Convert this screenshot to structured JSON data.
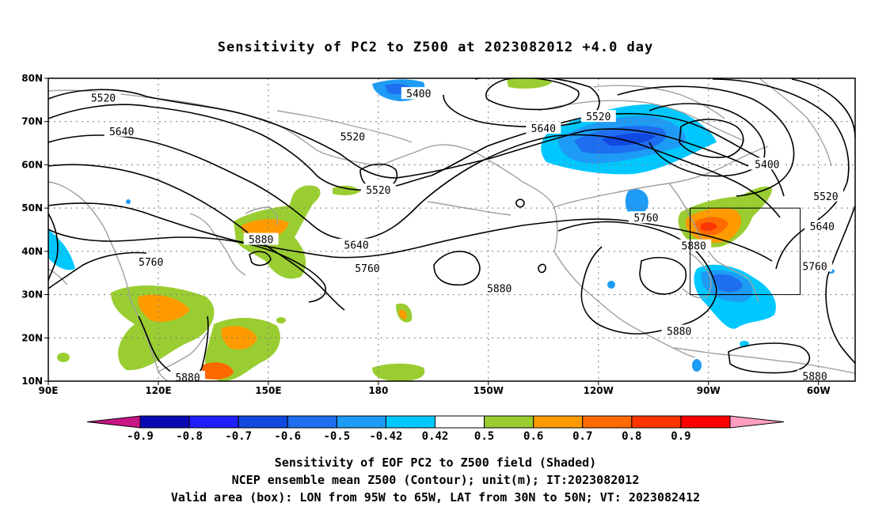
{
  "title": "Sensitivity of PC2 to Z500 at 2023082012 +4.0 day",
  "map": {
    "lat_labels": [
      "80N",
      "70N",
      "60N",
      "50N",
      "40N",
      "30N",
      "20N",
      "10N"
    ],
    "lon_labels": [
      "90E",
      "120E",
      "150E",
      "180",
      "150W",
      "120W",
      "90W",
      "60W"
    ],
    "contour_labels": [
      {
        "text": "5520",
        "lat": 75.5,
        "lon": 105
      },
      {
        "text": "5400",
        "lat": 76.5,
        "lon": 191
      },
      {
        "text": "5520",
        "lat": 71.2,
        "lon": 240
      },
      {
        "text": "5640",
        "lat": 67.8,
        "lon": 110
      },
      {
        "text": "5640",
        "lat": 68.5,
        "lon": 225
      },
      {
        "text": "5520",
        "lat": 66.6,
        "lon": 173
      },
      {
        "text": "5400",
        "lat": 60.2,
        "lon": 286
      },
      {
        "text": "5520",
        "lat": 54.2,
        "lon": 180
      },
      {
        "text": "5520",
        "lat": 52.8,
        "lon": 302
      },
      {
        "text": "5760",
        "lat": 47.8,
        "lon": 253
      },
      {
        "text": "5880",
        "lat": 42.8,
        "lon": 148
      },
      {
        "text": "5640",
        "lat": 41.5,
        "lon": 174
      },
      {
        "text": "5880",
        "lat": 41.3,
        "lon": 266
      },
      {
        "text": "5640",
        "lat": 45.8,
        "lon": 301
      },
      {
        "text": "5760",
        "lat": 37.6,
        "lon": 118
      },
      {
        "text": "5760",
        "lat": 36.1,
        "lon": 177
      },
      {
        "text": "5760",
        "lat": 36.6,
        "lon": 299
      },
      {
        "text": "5880",
        "lat": 31.5,
        "lon": 213
      },
      {
        "text": "5880",
        "lat": 21.6,
        "lon": 262
      },
      {
        "text": "5880",
        "lat": 10.9,
        "lon": 128
      },
      {
        "text": "5880",
        "lat": 11.2,
        "lon": 299
      }
    ],
    "valid_box": {
      "lon_west": 265,
      "lon_east": 295,
      "lat_south": 30,
      "lat_north": 50
    }
  },
  "colorbar": {
    "labels": [
      "-0.9",
      "-0.8",
      "-0.7",
      "-0.6",
      "-0.5",
      "-0.42",
      "0.42",
      "0.5",
      "0.6",
      "0.7",
      "0.8",
      "0.9"
    ],
    "colors": [
      "#c71585",
      "#0a0ab4",
      "#1e1eff",
      "#1048e0",
      "#1e6ef0",
      "#1e9bf5",
      "#00c8ff",
      "#ffffff",
      "#9acd32",
      "#ff9b00",
      "#ff6a00",
      "#ff3500",
      "#ff0000",
      "#ff9ec0"
    ]
  },
  "footer": {
    "line1": "Sensitivity of EOF PC2 to Z500 field (Shaded)",
    "line2": "NCEP ensemble mean Z500 (Contour); unit(m); IT:2023082012",
    "line3": "Valid area (box): LON from 95W to 65W, LAT from 30N to 50N; VT: 2023082412"
  }
}
